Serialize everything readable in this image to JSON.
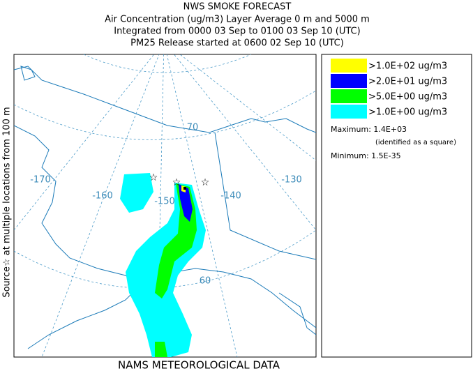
{
  "header": {
    "title": "NWS SMOKE FORECAST",
    "lines": [
      "Air Concentration (ug/m3) Layer Average    0 m and  5000 m",
      "Integrated from 0000 03 Sep to 0100 03 Sep 10 (UTC)",
      "PM25 Release started at 0600 02 Sep 10 (UTC)"
    ]
  },
  "side_label": "Source☆   at multiple locations   from   100 m",
  "map": {
    "labels": [
      "-170",
      "-160",
      "-150",
      "-140",
      "-130",
      "70",
      "60"
    ]
  },
  "legend": {
    "items": [
      {
        "label": ">1.0E+02 ug/m3",
        "color": "#ffff00"
      },
      {
        "label": ">2.0E+01 ug/m3",
        "color": "#0000ff"
      },
      {
        "label": ">5.0E+00 ug/m3",
        "color": "#00ff00"
      },
      {
        "label": ">1.0E+00 ug/m3",
        "color": "#00ffff"
      }
    ],
    "maximum": "Maximum: 1.4E+03",
    "maximum_note": "(identified as a square)",
    "minimum": "Minimum: 1.5E-35"
  },
  "footer": "NAMS METEOROLOGICAL DATA"
}
